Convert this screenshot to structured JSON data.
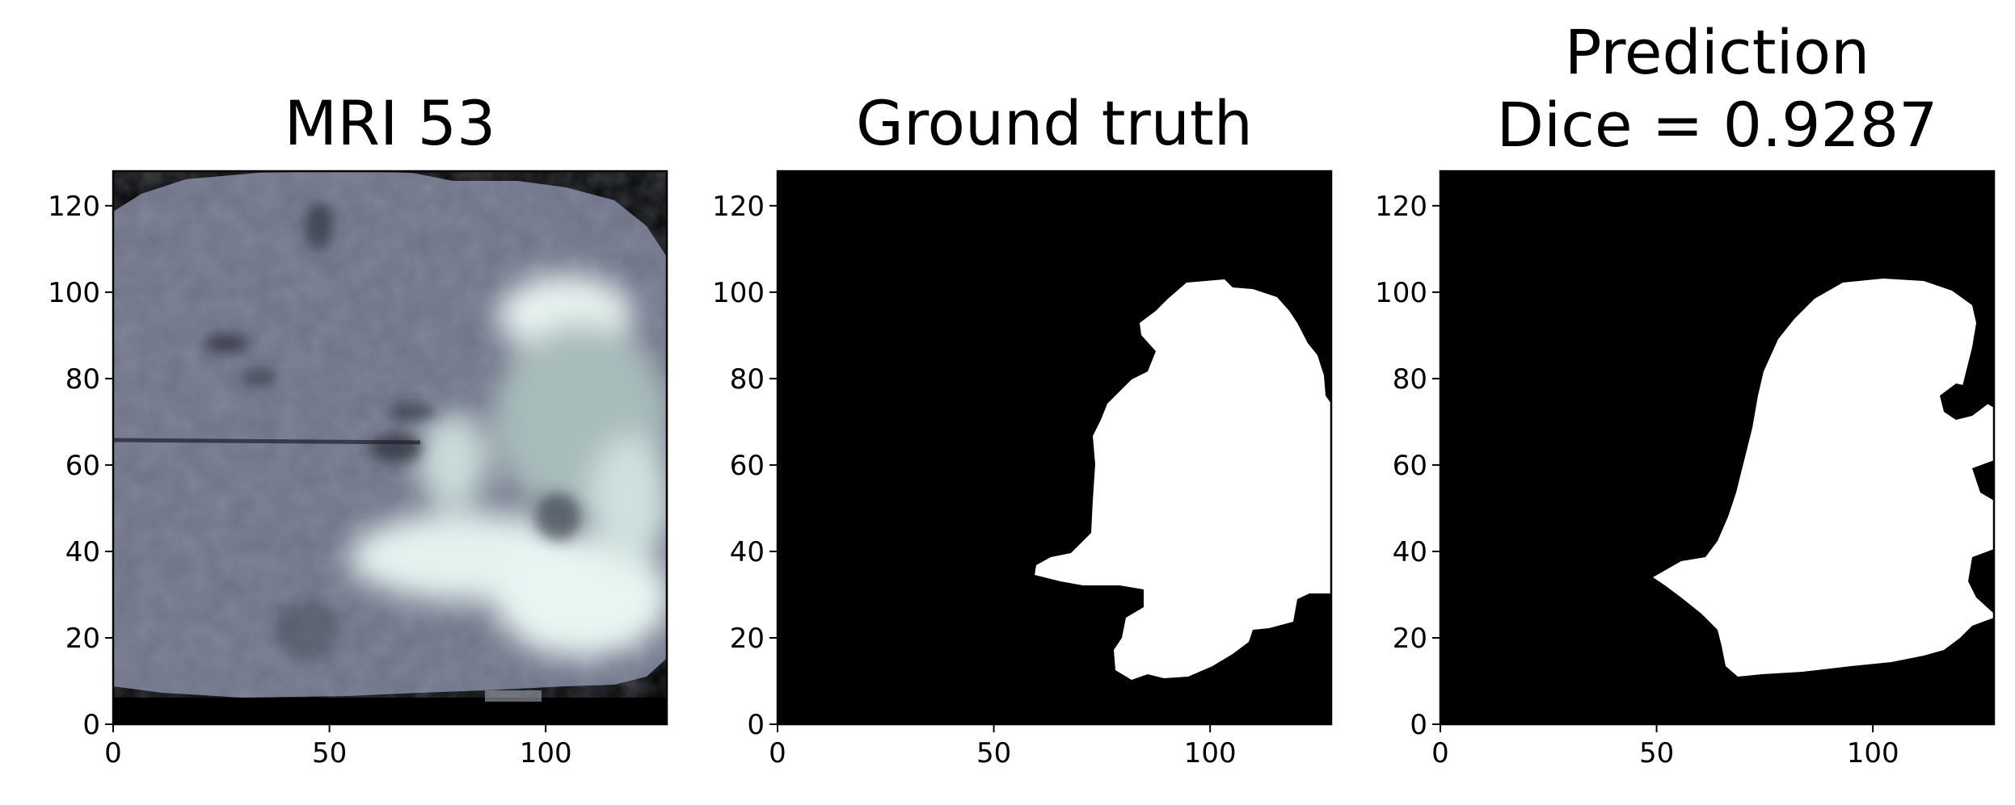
{
  "figure": {
    "panels": [
      {
        "id": "mri",
        "title_lines": [
          "MRI 53"
        ],
        "image_description_icon": "mri-brain-slice",
        "colormap": "bone",
        "x_ticks": [
          "0",
          "50",
          "100"
        ],
        "y_ticks": [
          "0",
          "20",
          "40",
          "60",
          "80",
          "100",
          "120"
        ]
      },
      {
        "id": "ground-truth",
        "title_lines": [
          "Ground truth"
        ],
        "colormap": "gray",
        "x_ticks": [
          "0",
          "50",
          "100"
        ],
        "y_ticks": [
          "0",
          "20",
          "40",
          "60",
          "80",
          "100",
          "120"
        ]
      },
      {
        "id": "prediction",
        "title_lines": [
          "Prediction",
          "Dice = 0.9287"
        ],
        "colormap": "gray",
        "x_ticks": [
          "0",
          "50",
          "100"
        ],
        "y_ticks": [
          "0",
          "20",
          "40",
          "60",
          "80",
          "100",
          "120"
        ]
      }
    ],
    "axis_range": {
      "x": [
        0,
        128
      ],
      "y": [
        0,
        128
      ]
    },
    "colors": {
      "mask_background": "#000000",
      "mask_foreground": "#ffffff",
      "mri_dark": "#4a4e5f",
      "mri_mid": "#7a8094",
      "mri_bright": "#e2f1ee"
    }
  }
}
